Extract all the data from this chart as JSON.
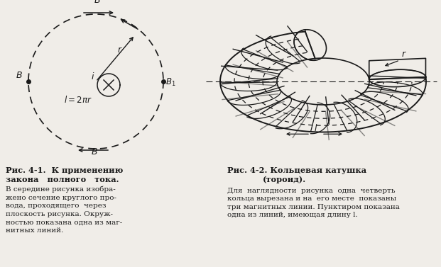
{
  "bg_color": "#f0ede8",
  "fig_width": 6.21,
  "fig_height": 3.77,
  "dpi": 100,
  "caption1_line1": "Рис. 4-1.  К применению",
  "caption1_line2": "закона   полного   тока.",
  "caption1_body": "В середине рисунка изобра-\nжено сечение круглого про-\nвода, проходящего  через\nплоскость рисунка. Окруж-\nностью показана одна из маг-\nнитных линий.",
  "caption2_line1": "Рис. 4-2. Кольцевая катушка",
  "caption2_line2": "(тороид).",
  "caption2_body": "Для  наглядности  рисунка  одна  четверть\nкольца вырезана и на  его месте  показаны\nтри магнитных линии. Пунктиром показана\nодна из линий, имеющая длину l.",
  "line_color": "#1a1a1a",
  "text_color": "#1a1a1a"
}
